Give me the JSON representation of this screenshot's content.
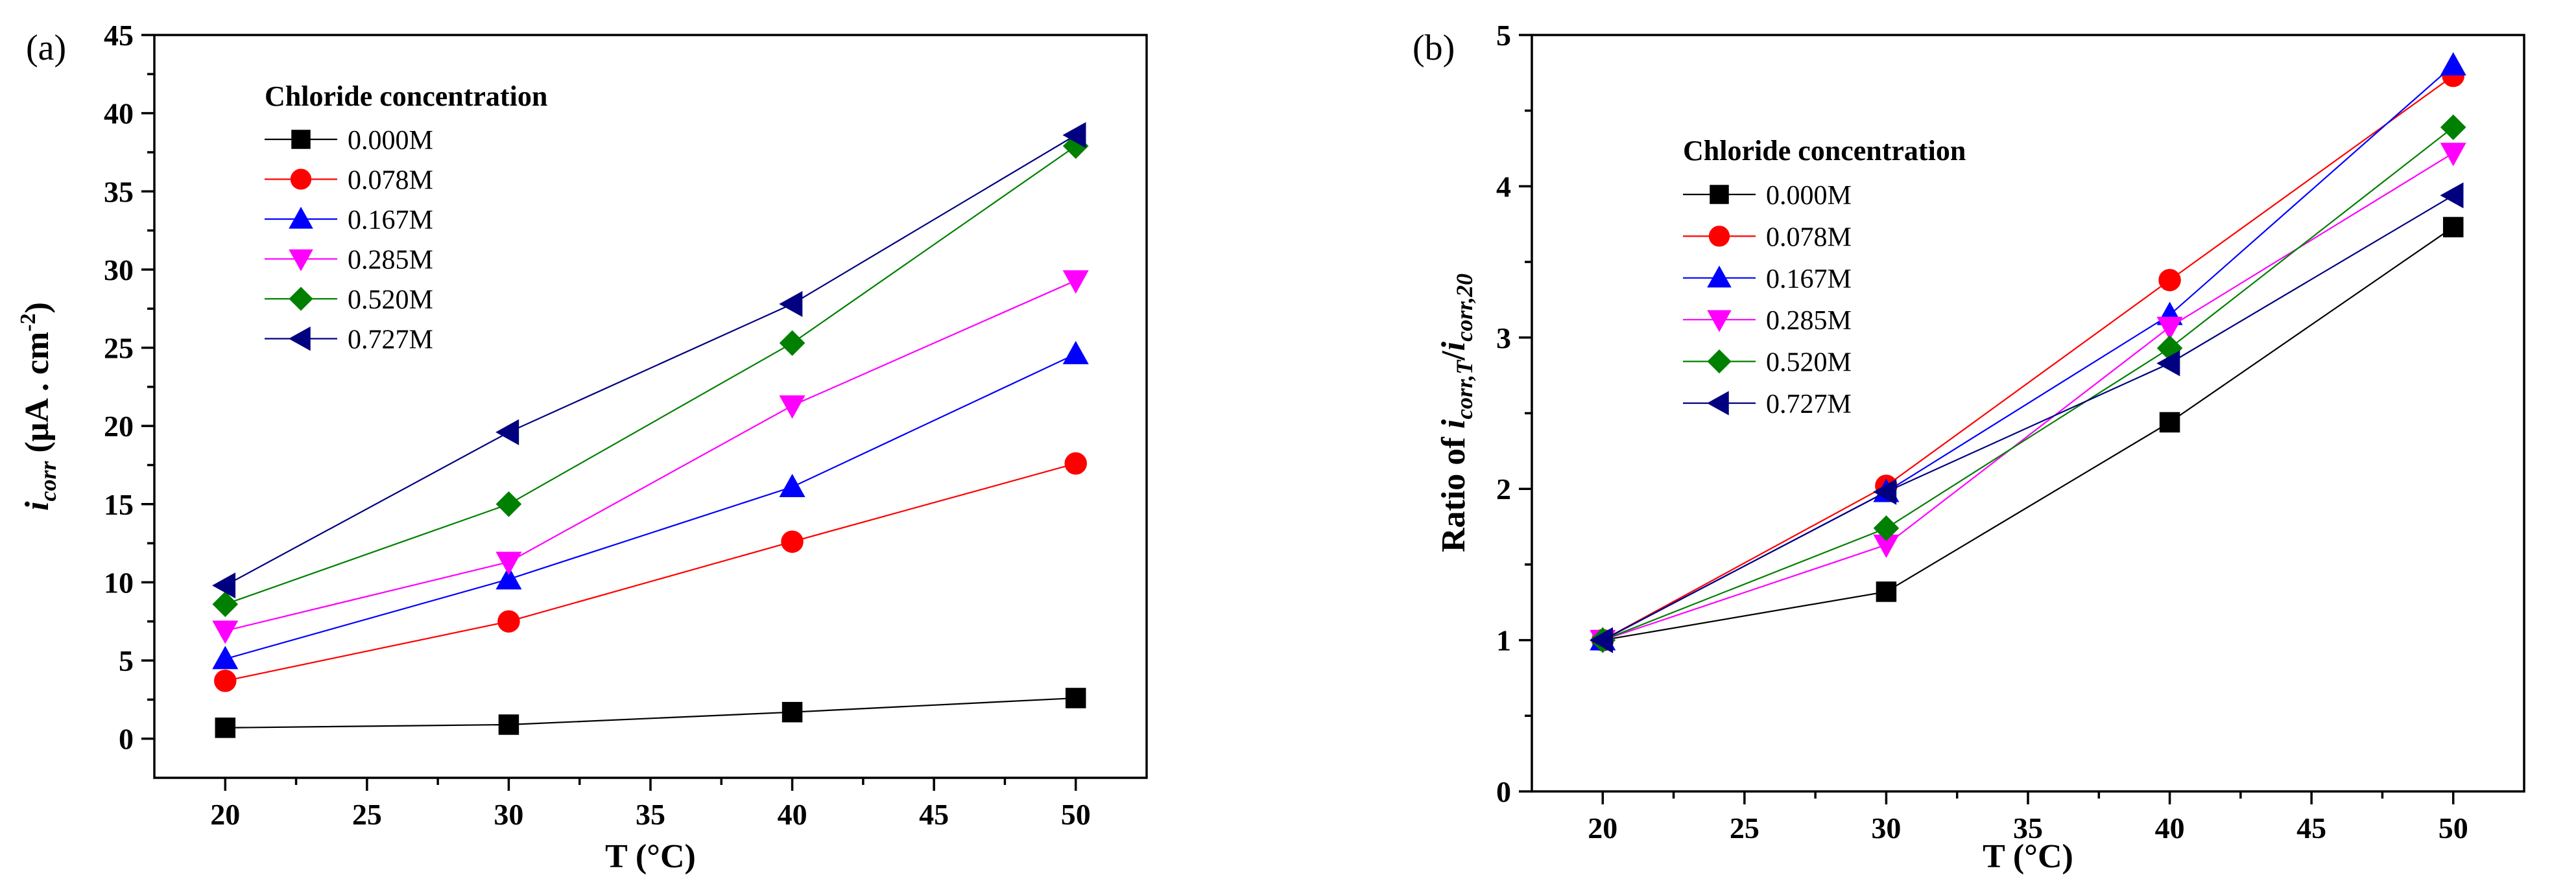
{
  "chart_data": [
    {
      "type": "line",
      "panel_label": "(a)",
      "xlabel": "T (°C)",
      "ylabel_main": "i",
      "ylabel_sub": "corr",
      "ylabel_unit_pre": " (μA . cm",
      "ylabel_unit_sup": "-2",
      "ylabel_unit_post": ")",
      "xlim": [
        17.5,
        52.5
      ],
      "ylim": [
        -2.5,
        45
      ],
      "xticks": [
        "20",
        "25",
        "30",
        "35",
        "40",
        "45",
        "50"
      ],
      "yticks": [
        "0",
        "5",
        "10",
        "15",
        "20",
        "25",
        "30",
        "35",
        "40",
        "45"
      ],
      "x": [
        20,
        30,
        40,
        50
      ],
      "legend_title": "Chloride concentration",
      "legend_location": "upper-left",
      "series": [
        {
          "name": "0.000M",
          "color": "#000000",
          "marker": "square",
          "values": [
            0.7,
            0.9,
            1.7,
            2.6
          ]
        },
        {
          "name": "0.078M",
          "color": "#ff0000",
          "marker": "circle",
          "values": [
            3.7,
            7.5,
            12.6,
            17.6
          ]
        },
        {
          "name": "0.167M",
          "color": "#0000ff",
          "marker": "triangle-up",
          "values": [
            5.1,
            10.2,
            16.1,
            24.6
          ]
        },
        {
          "name": "0.285M",
          "color": "#ff00ff",
          "marker": "triangle-down",
          "values": [
            6.9,
            11.3,
            21.3,
            29.3
          ]
        },
        {
          "name": "0.520M",
          "color": "#008000",
          "marker": "diamond",
          "values": [
            8.6,
            15.0,
            25.3,
            37.9
          ]
        },
        {
          "name": "0.727M",
          "color": "#000080",
          "marker": "triangle-left",
          "values": [
            9.8,
            19.6,
            27.8,
            38.6
          ]
        }
      ]
    },
    {
      "type": "line",
      "panel_label": "(b)",
      "xlabel": "T (°C)",
      "ylabel_pre": "Ratio of ",
      "ylabel_i1": "i",
      "ylabel_sub1": "corr,T",
      "ylabel_slash": "/",
      "ylabel_i2": "i",
      "ylabel_sub2": "corr,20",
      "xlim": [
        17.5,
        52.5
      ],
      "ylim": [
        0,
        5
      ],
      "xticks": [
        "20",
        "25",
        "30",
        "35",
        "40",
        "45",
        "50"
      ],
      "yticks": [
        "0",
        "1",
        "2",
        "3",
        "4",
        "5"
      ],
      "x": [
        20,
        30,
        40,
        50
      ],
      "legend_title": "Chloride concentration",
      "legend_location": "upper-left",
      "series": [
        {
          "name": "0.000M",
          "color": "#000000",
          "marker": "square",
          "values": [
            1.0,
            1.32,
            2.44,
            3.73
          ]
        },
        {
          "name": "0.078M",
          "color": "#ff0000",
          "marker": "circle",
          "values": [
            1.0,
            2.02,
            3.38,
            4.73
          ]
        },
        {
          "name": "0.167M",
          "color": "#0000ff",
          "marker": "triangle-up",
          "values": [
            1.0,
            1.98,
            3.15,
            4.8
          ]
        },
        {
          "name": "0.285M",
          "color": "#ff00ff",
          "marker": "triangle-down",
          "values": [
            1.0,
            1.63,
            3.07,
            4.22
          ]
        },
        {
          "name": "0.520M",
          "color": "#008000",
          "marker": "diamond",
          "values": [
            1.0,
            1.74,
            2.93,
            4.39
          ]
        },
        {
          "name": "0.727M",
          "color": "#000080",
          "marker": "triangle-left",
          "values": [
            1.0,
            1.98,
            2.83,
            3.94
          ]
        }
      ]
    }
  ]
}
